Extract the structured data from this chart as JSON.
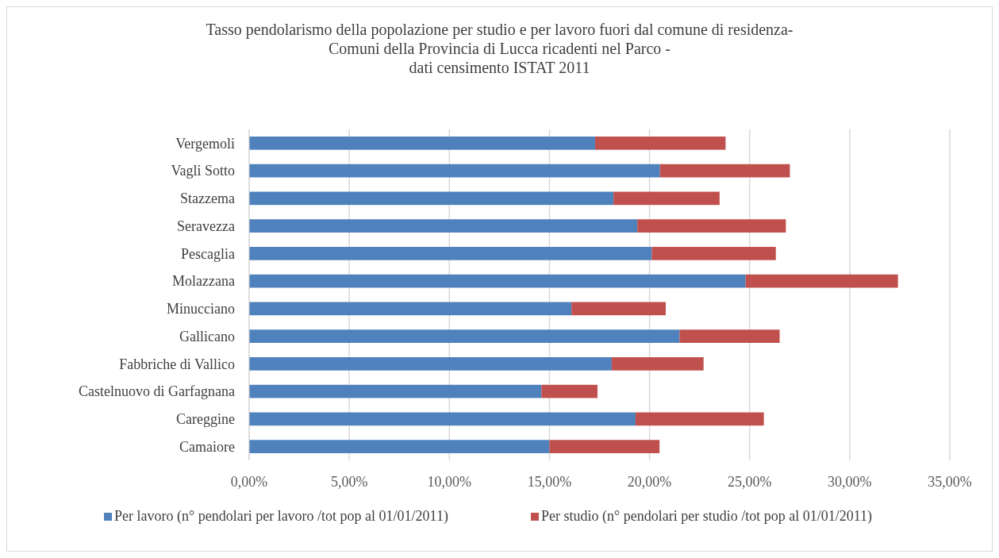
{
  "chart_data": {
    "type": "bar",
    "orientation": "horizontal",
    "stacked": true,
    "title": "Tasso pendolarismo della popolazione per studio e per lavoro fuori dal comune di residenza-\nComuni della Provincia di Lucca ricadenti nel Parco -\ndati censimento ISTAT 2011",
    "categories": [
      "Vergemoli",
      "Vagli Sotto",
      "Stazzema",
      "Seravezza",
      "Pescaglia",
      "Molazzana",
      "Minucciano",
      "Gallicano",
      "Fabbriche di Vallico",
      "Castelnuovo di Garfagnana",
      "Careggine",
      "Camaiore"
    ],
    "series": [
      {
        "name": "Per lavoro (n° pendolari per lavoro /tot pop al 01/01/2011)",
        "color": "#4f81bd",
        "values": [
          17.28,
          20.52,
          18.2,
          19.39,
          20.11,
          24.8,
          16.1,
          21.5,
          18.11,
          14.6,
          19.3,
          15.0
        ]
      },
      {
        "name": "Per studio (n° pendolari per studio /tot pop al 01/01/2011)",
        "color": "#c0504d",
        "values": [
          6.52,
          6.49,
          5.3,
          7.42,
          6.2,
          7.61,
          4.71,
          5.0,
          4.59,
          2.8,
          6.41,
          5.5
        ]
      }
    ],
    "xlim": [
      0,
      35
    ],
    "xticks": [
      {
        "value": 0,
        "label": "0,00%"
      },
      {
        "value": 5,
        "label": "5,00%"
      },
      {
        "value": 10,
        "label": "10,00%"
      },
      {
        "value": 15,
        "label": "15,00%"
      },
      {
        "value": 20,
        "label": "20,00%"
      },
      {
        "value": 25,
        "label": "25,00%"
      },
      {
        "value": 30,
        "label": "30,00%"
      },
      {
        "value": 35,
        "label": "35,00%"
      }
    ],
    "grid": "x",
    "legend": "bottom"
  }
}
